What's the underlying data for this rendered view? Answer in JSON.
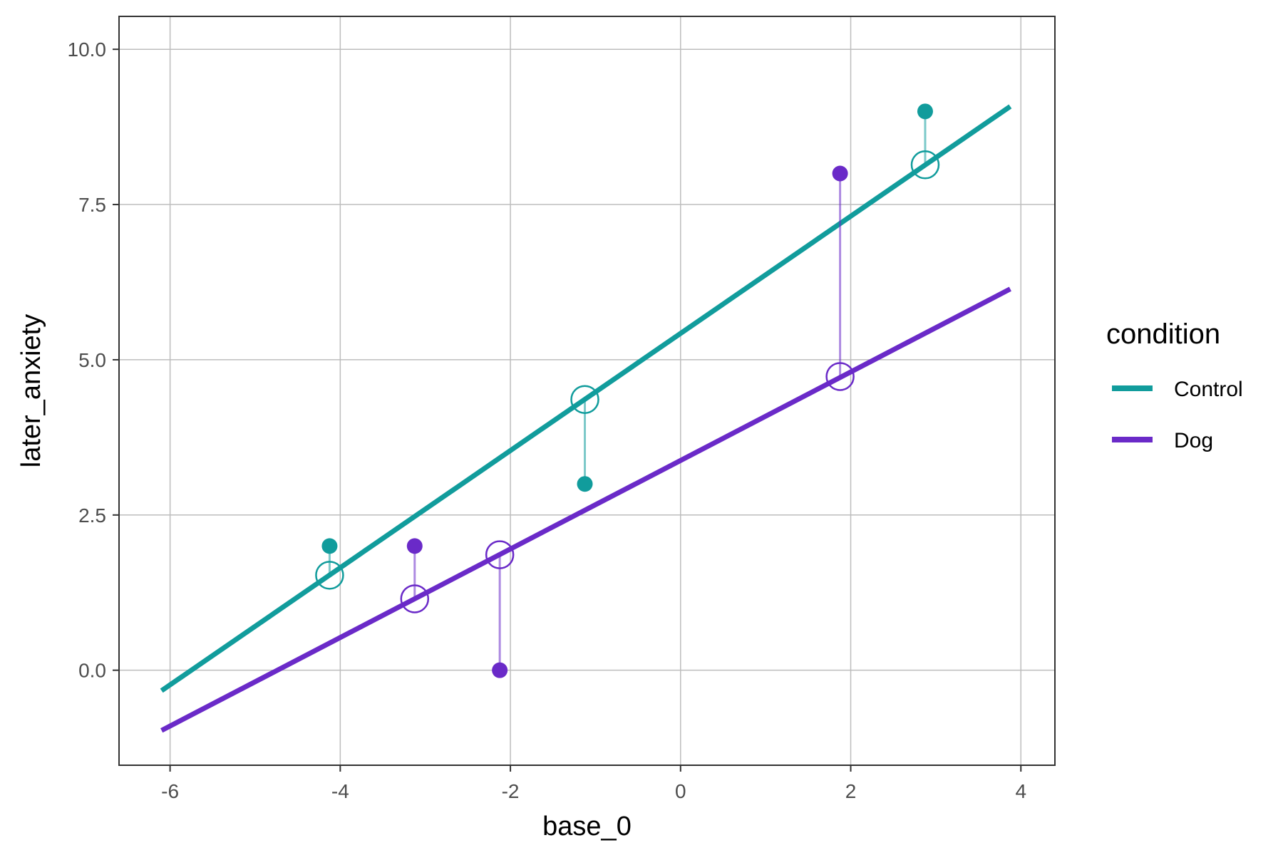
{
  "chart_data": {
    "type": "scatter",
    "xlabel": "base_0",
    "ylabel": "later_anxiety",
    "xlim": [
      -6.6,
      4.4
    ],
    "ylim": [
      -1.53,
      10.53
    ],
    "xticks": [
      -6,
      -4,
      -2,
      0,
      2,
      4
    ],
    "yticks": [
      0.0,
      2.5,
      5.0,
      7.5,
      10.0
    ],
    "x_tick_labels": [
      "-6",
      "-4",
      "-2",
      "0",
      "2",
      "4"
    ],
    "y_tick_labels": [
      "0.0",
      "2.5",
      "5.0",
      "7.5",
      "10.0"
    ],
    "grid": true,
    "legend": {
      "title": "condition",
      "placement": "right",
      "items": [
        {
          "label": "Control",
          "color": "#119c9c"
        },
        {
          "label": "Dog",
          "color": "#6a2ac8"
        }
      ]
    },
    "series": [
      {
        "name": "Control",
        "color": "#119c9c",
        "line": {
          "x": [
            -6.1,
            3.875
          ],
          "y": [
            -0.33,
            9.08
          ]
        },
        "observed": [
          {
            "x": -4.125,
            "y": 2.0
          },
          {
            "x": -1.125,
            "y": 3.0
          },
          {
            "x": 2.875,
            "y": 9.0
          }
        ],
        "fitted": [
          {
            "x": -4.125,
            "y": 1.53
          },
          {
            "x": -1.125,
            "y": 4.36
          },
          {
            "x": 2.875,
            "y": 8.14
          }
        ]
      },
      {
        "name": "Dog",
        "color": "#6a2ac8",
        "line": {
          "x": [
            -6.1,
            3.875
          ],
          "y": [
            -0.97,
            6.14
          ]
        },
        "observed": [
          {
            "x": -3.125,
            "y": 2.0
          },
          {
            "x": -2.125,
            "y": 0.0
          },
          {
            "x": 1.875,
            "y": 8.0
          }
        ],
        "fitted": [
          {
            "x": -3.125,
            "y": 1.15
          },
          {
            "x": -2.125,
            "y": 1.86
          },
          {
            "x": 1.875,
            "y": 4.73
          }
        ]
      }
    ]
  }
}
